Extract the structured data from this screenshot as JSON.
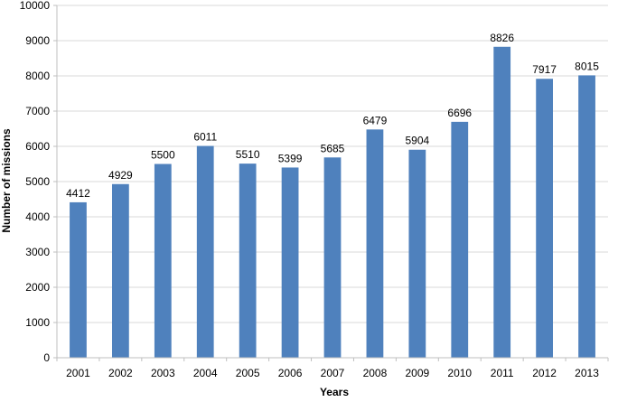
{
  "chart_data": {
    "type": "bar",
    "title": "",
    "xlabel": "Years",
    "ylabel": "Number of missions",
    "categories": [
      "2001",
      "2002",
      "2003",
      "2004",
      "2005",
      "2006",
      "2007",
      "2008",
      "2009",
      "2010",
      "2011",
      "2012",
      "2013"
    ],
    "values": [
      4412,
      4929,
      5500,
      6011,
      5510,
      5399,
      5685,
      6479,
      5904,
      6696,
      8826,
      7917,
      8015
    ],
    "ylim": [
      0,
      10000
    ],
    "yticks": [
      0,
      1000,
      2000,
      3000,
      4000,
      5000,
      6000,
      7000,
      8000,
      9000,
      10000
    ],
    "grid": true,
    "legend": "none",
    "bar_color": "#4f81bd",
    "grid_color": "#d9d9d9"
  }
}
